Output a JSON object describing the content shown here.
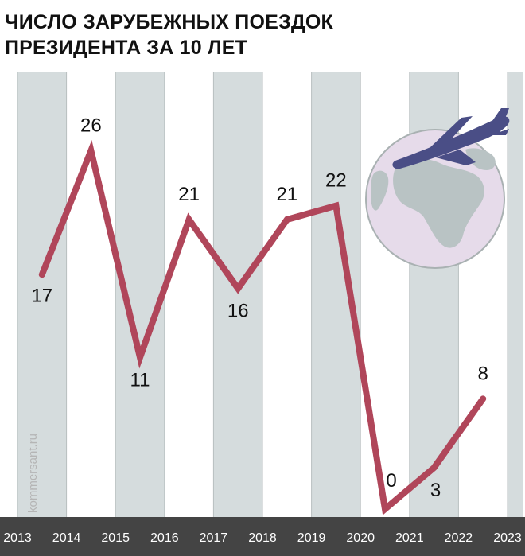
{
  "chart_data": {
    "type": "line",
    "title": [
      "ЧИСЛО ЗАРУБЕЖНЫХ ПОЕЗДОК",
      "ПРЕЗИДЕНТА ЗА 10 ЛЕТ"
    ],
    "year_ticks": [
      "2013",
      "2014",
      "2015",
      "2016",
      "2017",
      "2018",
      "2019",
      "2020",
      "2021",
      "2022",
      "2023"
    ],
    "series": [
      {
        "x": [
          2013.5,
          2014.5,
          2015.5,
          2016.5,
          2017.5,
          2018.5,
          2019.5,
          2020.5,
          2021.5,
          2022.5
        ],
        "values": [
          17,
          26,
          11,
          21,
          16,
          21,
          22,
          0,
          3,
          8
        ],
        "labels": [
          "17",
          "26",
          "11",
          "21",
          "16",
          "21",
          "22",
          "0",
          "3",
          "8"
        ]
      }
    ],
    "xlim": [
      2013,
      2023.3
    ],
    "ylim": [
      0,
      30
    ],
    "grid": "alternating year bands",
    "colors": {
      "line": "#b0465a",
      "band": "#d5dcdd",
      "axis_bar": "#444444",
      "axis_text": "#ffffff",
      "plane": "#4a4e86",
      "globe": "#e6dbea",
      "land": "#b9c3c4"
    }
  },
  "watermark": "kommersant.ru"
}
